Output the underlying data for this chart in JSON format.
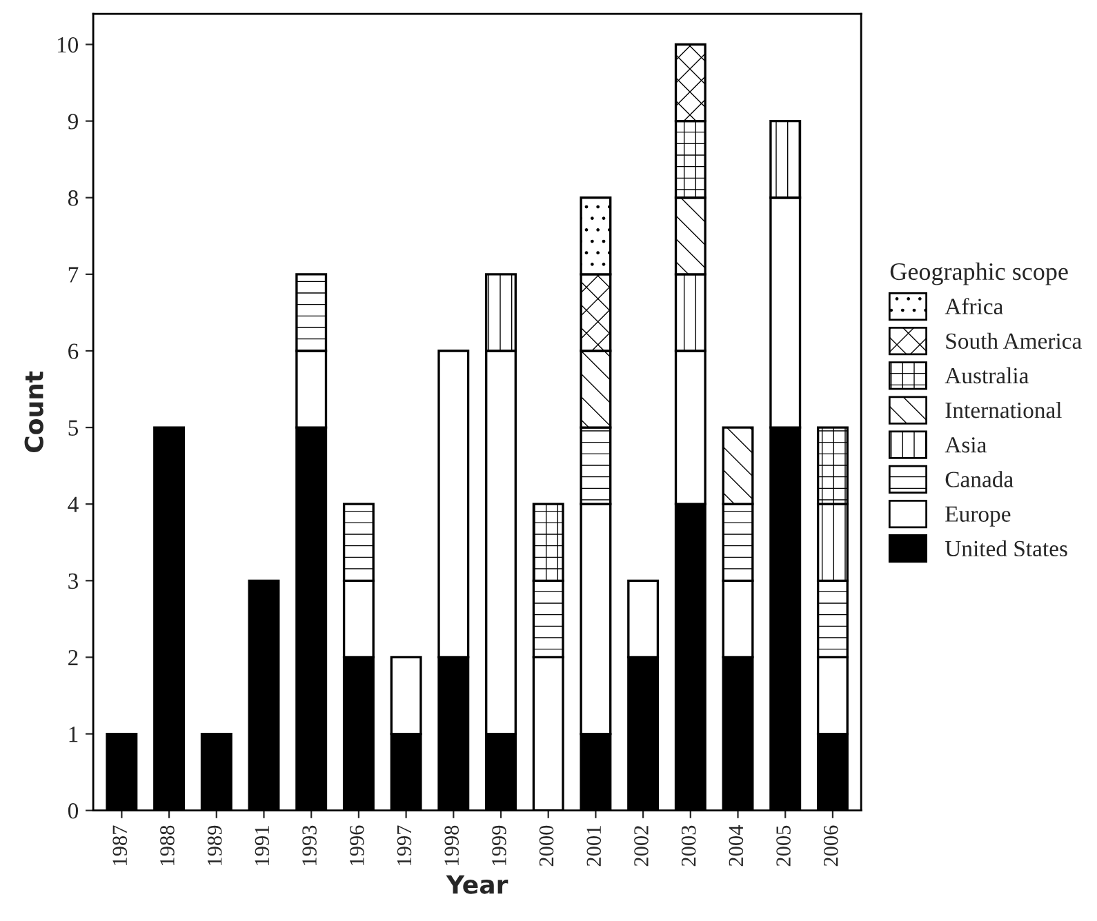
{
  "chart_data": {
    "type": "bar",
    "stacked": true,
    "xlabel": "Year",
    "ylabel": "Count",
    "legend_title": "Geographic scope",
    "legend": "right",
    "grid": false,
    "categories": [
      "1987",
      "1988",
      "1989",
      "1991",
      "1993",
      "1996",
      "1997",
      "1998",
      "1999",
      "2000",
      "2001",
      "2002",
      "2003",
      "2004",
      "2005",
      "2006"
    ],
    "ylim": [
      0,
      10.4
    ],
    "yticks": [
      0,
      1,
      2,
      3,
      4,
      5,
      6,
      7,
      8,
      9,
      10
    ],
    "series": [
      {
        "name": "United States",
        "color": "#000000",
        "values": [
          1,
          5,
          1,
          3,
          5,
          2,
          1,
          2,
          1,
          0,
          1,
          2,
          4,
          2,
          5,
          1
        ]
      },
      {
        "name": "Europe",
        "color": "#ffffff",
        "values": [
          0,
          0,
          0,
          0,
          1,
          1,
          1,
          4,
          5,
          2,
          3,
          1,
          2,
          1,
          3,
          1
        ]
      },
      {
        "name": "Canada",
        "color": "#000000",
        "values": [
          0,
          0,
          0,
          0,
          1,
          1,
          0,
          0,
          0,
          1,
          1,
          0,
          0,
          1,
          0,
          1
        ]
      },
      {
        "name": "Asia",
        "color": "#000000",
        "values": [
          0,
          0,
          0,
          0,
          0,
          0,
          0,
          0,
          1,
          0,
          0,
          0,
          1,
          0,
          1,
          1
        ]
      },
      {
        "name": "International",
        "color": "#000000",
        "values": [
          0,
          0,
          0,
          0,
          0,
          0,
          0,
          0,
          0,
          0,
          1,
          0,
          1,
          1,
          0,
          0
        ]
      },
      {
        "name": "Australia",
        "color": "#000000",
        "values": [
          0,
          0,
          0,
          0,
          0,
          0,
          0,
          0,
          0,
          1,
          0,
          0,
          1,
          0,
          0,
          1
        ]
      },
      {
        "name": "South America",
        "color": "#000000",
        "values": [
          0,
          0,
          0,
          0,
          0,
          0,
          0,
          0,
          0,
          0,
          1,
          0,
          1,
          0,
          0,
          0
        ]
      },
      {
        "name": "Africa",
        "color": "#000000",
        "values": [
          0,
          0,
          0,
          0,
          0,
          0,
          0,
          0,
          0,
          0,
          1,
          0,
          0,
          0,
          0,
          0
        ]
      }
    ]
  }
}
